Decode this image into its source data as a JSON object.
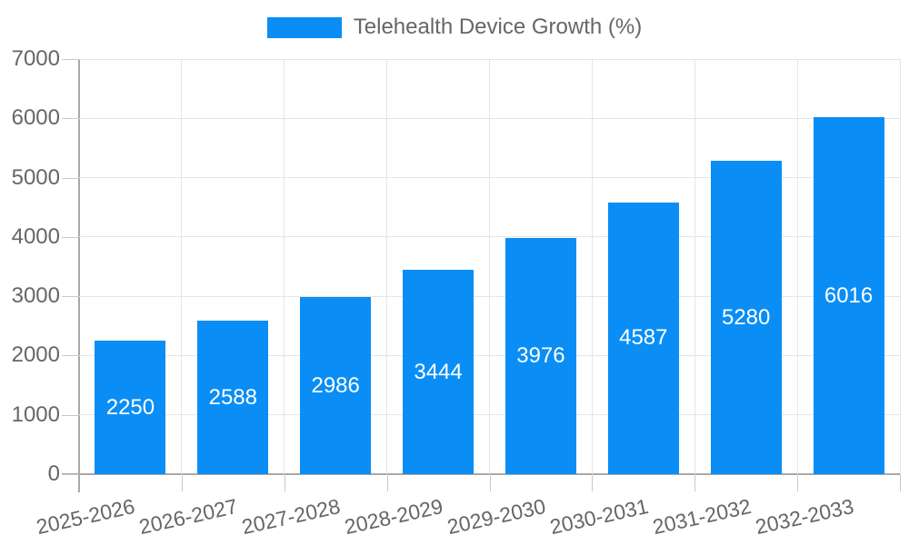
{
  "chart_data": {
    "type": "bar",
    "title": "Telehealth Device Growth (%)",
    "legend_entries": [
      "Telehealth Device Growth (%)"
    ],
    "legend_position": "top",
    "categories": [
      "2025-2026",
      "2026-2027",
      "2027-2028",
      "2028-2029",
      "2029-2030",
      "2030-2031",
      "2031-2032",
      "2032-2033"
    ],
    "values": [
      2250,
      2588,
      2986,
      3444,
      3976,
      4587,
      5280,
      6016
    ],
    "bar_value_labels": [
      "2250",
      "2588",
      "2986",
      "3444",
      "3976",
      "4587",
      "5280",
      "6016"
    ],
    "xlabel": "",
    "ylabel": "",
    "ylim": [
      0,
      7000
    ],
    "ytick_step": 1000,
    "ytick_labels": [
      "0",
      "1000",
      "2000",
      "3000",
      "4000",
      "5000",
      "6000",
      "7000"
    ],
    "grid": true
  },
  "colors": {
    "bar": "#0a8ef5",
    "grid": "#e5e5e5",
    "axis": "#a8a8a8",
    "tick": "#c9c9c9",
    "tick_text": "#666666",
    "bar_label": "#ffffff",
    "legend_text": "#666666",
    "background": "#ffffff"
  }
}
